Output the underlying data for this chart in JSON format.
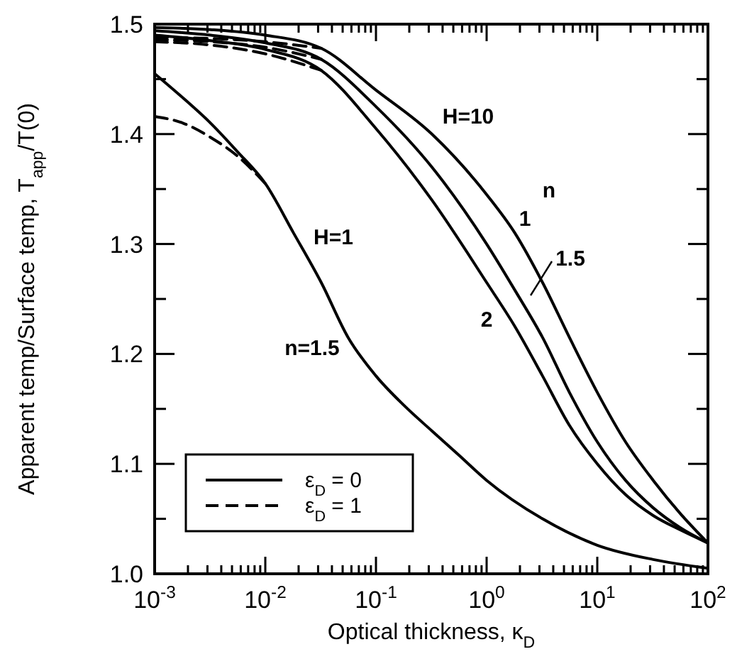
{
  "chart_data": {
    "type": "line",
    "xlabel": "Optical thickness, κ$_{D}$",
    "ylabel": "Apparent temp/Surface temp, T$_{app}$/T(0)",
    "log": "x",
    "xlim": [
      0.001,
      100
    ],
    "ylim": [
      1.0,
      1.5
    ],
    "xticks": [
      {
        "value": 0.001,
        "label": "10$^{-3}$"
      },
      {
        "value": 0.002,
        "label": null
      },
      {
        "value": 0.003,
        "label": null
      },
      {
        "value": 0.004,
        "label": null
      },
      {
        "value": 0.005,
        "label": null
      },
      {
        "value": 0.006,
        "label": null
      },
      {
        "value": 0.007,
        "label": null
      },
      {
        "value": 0.008,
        "label": null
      },
      {
        "value": 0.009,
        "label": null
      },
      {
        "value": 0.01,
        "label": "10$^{-2}$"
      },
      {
        "value": 0.02,
        "label": null
      },
      {
        "value": 0.03,
        "label": null
      },
      {
        "value": 0.04,
        "label": null
      },
      {
        "value": 0.05,
        "label": null
      },
      {
        "value": 0.06,
        "label": null
      },
      {
        "value": 0.07,
        "label": null
      },
      {
        "value": 0.08,
        "label": null
      },
      {
        "value": 0.09,
        "label": null
      },
      {
        "value": 0.1,
        "label": "10$^{-1}$"
      },
      {
        "value": 0.2,
        "label": null
      },
      {
        "value": 0.3,
        "label": null
      },
      {
        "value": 0.4,
        "label": null
      },
      {
        "value": 0.5,
        "label": null
      },
      {
        "value": 0.6,
        "label": null
      },
      {
        "value": 0.7,
        "label": null
      },
      {
        "value": 0.8,
        "label": null
      },
      {
        "value": 0.9,
        "label": null
      },
      {
        "value": 1,
        "label": "10$^{0}$"
      },
      {
        "value": 2,
        "label": null
      },
      {
        "value": 3,
        "label": null
      },
      {
        "value": 4,
        "label": null
      },
      {
        "value": 5,
        "label": null
      },
      {
        "value": 6,
        "label": null
      },
      {
        "value": 7,
        "label": null
      },
      {
        "value": 8,
        "label": null
      },
      {
        "value": 9,
        "label": null
      },
      {
        "value": 10,
        "label": "10$^{1}$"
      },
      {
        "value": 20,
        "label": null
      },
      {
        "value": 30,
        "label": null
      },
      {
        "value": 40,
        "label": null
      },
      {
        "value": 50,
        "label": null
      },
      {
        "value": 60,
        "label": null
      },
      {
        "value": 70,
        "label": null
      },
      {
        "value": 80,
        "label": null
      },
      {
        "value": 90,
        "label": null
      },
      {
        "value": 100,
        "label": "10$^{2}$"
      }
    ],
    "yticks": [
      {
        "value": 1.0,
        "label": "1.0"
      },
      {
        "value": 1.05,
        "label": null
      },
      {
        "value": 1.1,
        "label": "1.1"
      },
      {
        "value": 1.15,
        "label": null
      },
      {
        "value": 1.2,
        "label": "1.2"
      },
      {
        "value": 1.25,
        "label": null
      },
      {
        "value": 1.3,
        "label": "1.3"
      },
      {
        "value": 1.35,
        "label": null
      },
      {
        "value": 1.4,
        "label": "1.4"
      },
      {
        "value": 1.45,
        "label": null
      },
      {
        "value": 1.5,
        "label": "1.5"
      }
    ],
    "grid": false,
    "legend": "bottom left",
    "marker": "none",
    "series": [
      {
        "name": "ε$_{D}$ = 0",
        "color": "#000000",
        "line_style": "solid",
        "x": [
          0.001,
          0.0032,
          0.01,
          0.032,
          0.1,
          0.32,
          1,
          1.8,
          3.2,
          5.6,
          10,
          18,
          32,
          56,
          100
        ],
        "values": [
          1.497,
          1.495,
          1.49,
          1.478,
          1.44,
          1.4,
          1.345,
          1.31,
          1.265,
          1.215,
          1.165,
          1.12,
          1.085,
          1.055,
          1.028
        ]
      },
      {
        "color": "#000000",
        "line_style": "solid",
        "x": [
          0.001,
          0.0032,
          0.01,
          0.032,
          0.1,
          0.32,
          1,
          1.8,
          3.2,
          5.6,
          10,
          18,
          32,
          56,
          100
        ],
        "values": [
          1.494,
          1.49,
          1.483,
          1.468,
          1.425,
          1.37,
          1.3,
          1.258,
          1.215,
          1.165,
          1.12,
          1.085,
          1.06,
          1.042,
          1.028
        ]
      },
      {
        "color": "#000000",
        "line_style": "solid",
        "x": [
          0.001,
          0.0032,
          0.01,
          0.032,
          0.1,
          0.32,
          1,
          1.8,
          3.2,
          5.6,
          10,
          18,
          32,
          56,
          100
        ],
        "values": [
          1.49,
          1.485,
          1.477,
          1.458,
          1.405,
          1.34,
          1.265,
          1.225,
          1.18,
          1.135,
          1.1,
          1.072,
          1.053,
          1.04,
          1.028
        ]
      },
      {
        "color": "#000000",
        "line_style": "solid",
        "x": [
          0.001,
          0.0018,
          0.0032,
          0.0056,
          0.01,
          0.018,
          0.032,
          0.056,
          0.1,
          0.18,
          0.32,
          0.56,
          1,
          3.2,
          10,
          32,
          100
        ],
        "values": [
          1.455,
          1.433,
          1.41,
          1.384,
          1.355,
          1.31,
          1.265,
          1.215,
          1.18,
          1.153,
          1.13,
          1.108,
          1.085,
          1.05,
          1.026,
          1.013,
          1.005
        ]
      },
      {
        "name": "ε$_{D}$ = 1",
        "color": "#000000",
        "line_style": "dashed",
        "x": [
          0.001,
          0.0032,
          0.01,
          0.032
        ],
        "values": [
          1.488,
          1.487,
          1.484,
          1.478
        ]
      },
      {
        "color": "#000000",
        "line_style": "dashed",
        "x": [
          0.001,
          0.0032,
          0.01,
          0.032
        ],
        "values": [
          1.486,
          1.484,
          1.479,
          1.468
        ]
      },
      {
        "color": "#000000",
        "line_style": "dashed",
        "x": [
          0.001,
          0.0032,
          0.01,
          0.032
        ],
        "values": [
          1.484,
          1.481,
          1.473,
          1.458
        ]
      },
      {
        "color": "#000000",
        "line_style": "dashed",
        "x": [
          0.001,
          0.0018,
          0.0032,
          0.0056,
          0.01
        ],
        "values": [
          1.416,
          1.41,
          1.397,
          1.38,
          1.355
        ]
      }
    ],
    "annotations": [
      "H=10",
      "n",
      "1",
      "1.5",
      "2",
      "H=1",
      "n=1.5"
    ]
  }
}
